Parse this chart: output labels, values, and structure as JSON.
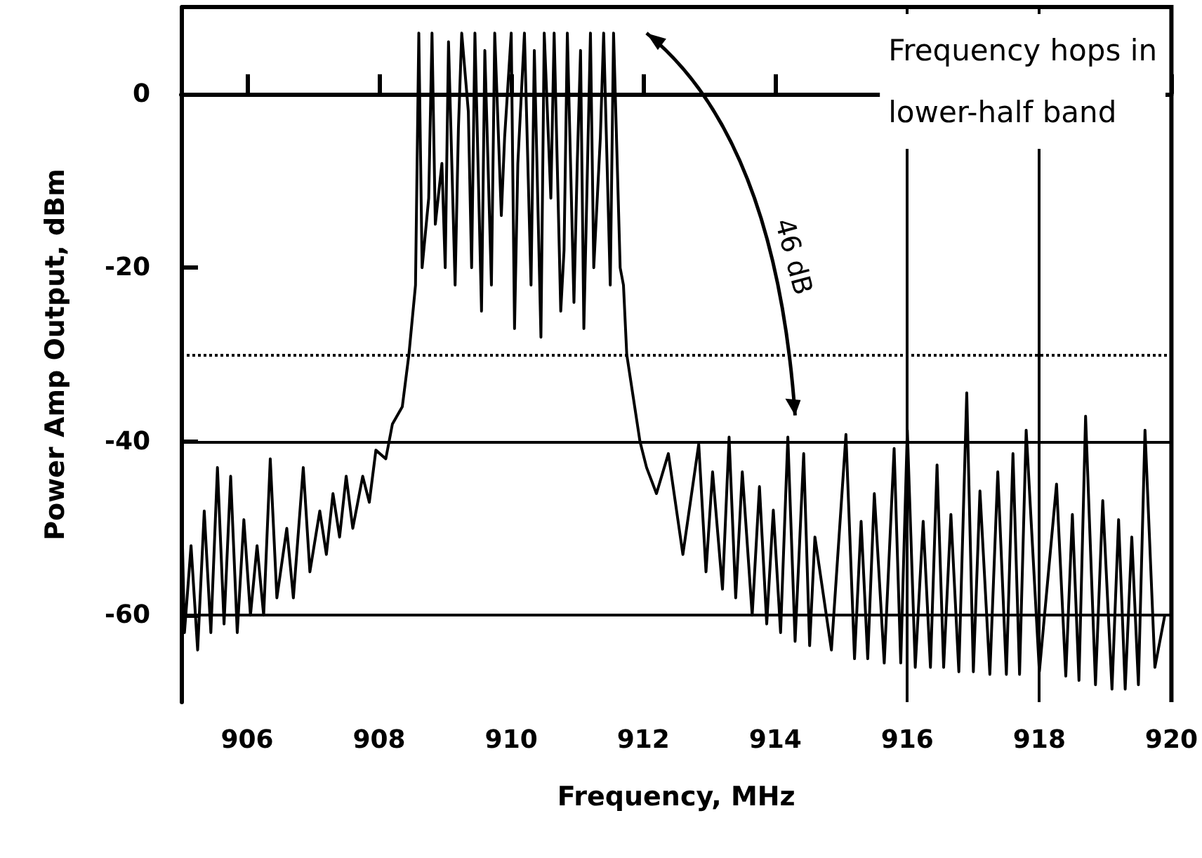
{
  "chart_data": {
    "type": "line",
    "xlabel": "Frequency, MHz",
    "ylabel": "Power Amp Output, dBm",
    "xlim": [
      905,
      920
    ],
    "xticks": [
      906,
      908,
      910,
      912,
      914,
      916,
      918,
      920
    ],
    "ylim": [
      -70,
      10
    ],
    "yticks": [
      0,
      -20,
      -40,
      -60
    ],
    "grid": false,
    "marker": "none",
    "line_style": "solid",
    "ref_lines": [
      {
        "axis": "y",
        "value": 0,
        "color": "#000000",
        "line_style": "solid"
      },
      {
        "axis": "y",
        "value": -40,
        "color": "#000000",
        "line_style": "solid"
      },
      {
        "axis": "y",
        "value": -60,
        "color": "#000000",
        "line_style": "solid"
      },
      {
        "axis": "y",
        "value": -30,
        "color": "#000000",
        "line_style": "dotted"
      },
      {
        "axis": "x",
        "value": 916,
        "color": "#000000",
        "line_style": "solid"
      },
      {
        "axis": "x",
        "value": 918,
        "color": "#000000",
        "line_style": "solid"
      }
    ],
    "annotations": [
      "Frequency hops in\nlower-half band",
      "46 dB"
    ],
    "series": [
      {
        "color": "#000000",
        "x": [
          905.0,
          905.05,
          905.15,
          905.25,
          905.35,
          905.45,
          905.55,
          905.65,
          905.75,
          905.85,
          905.95,
          906.05,
          906.15,
          906.25,
          906.35,
          906.45,
          906.6,
          906.7,
          906.85,
          906.95,
          907.1,
          907.2,
          907.3,
          907.4,
          907.5,
          907.6,
          907.75,
          907.85,
          907.95,
          908.1,
          908.2,
          908.35,
          908.45,
          908.55,
          908.6,
          908.65,
          908.75,
          908.8,
          908.85,
          908.95,
          909.0,
          909.05,
          909.15,
          909.2,
          909.25,
          909.35,
          909.4,
          909.45,
          909.55,
          909.6,
          909.7,
          909.75,
          909.85,
          909.9,
          910.0,
          910.05,
          910.1,
          910.2,
          910.3,
          910.35,
          910.45,
          910.5,
          910.6,
          910.65,
          910.75,
          910.8,
          910.85,
          910.95,
          911.0,
          911.05,
          911.1,
          911.2,
          911.25,
          911.35,
          911.4,
          911.5,
          911.55,
          911.65,
          911.7,
          911.75,
          911.85,
          911.95,
          912.05,
          912.2,
          912.38,
          912.6,
          912.84,
          912.95,
          913.05,
          913.2,
          913.3,
          913.4,
          913.5,
          913.65,
          913.76,
          913.87,
          913.97,
          914.08,
          914.19,
          914.3,
          914.43,
          914.52,
          914.6,
          914.85,
          915.07,
          915.2,
          915.3,
          915.4,
          915.5,
          915.65,
          915.8,
          915.9,
          916.0,
          916.12,
          916.24,
          916.35,
          916.45,
          916.55,
          916.66,
          916.78,
          916.9,
          917.0,
          917.1,
          917.25,
          917.37,
          917.5,
          917.6,
          917.7,
          917.8,
          918.0,
          918.26,
          918.4,
          918.5,
          918.6,
          918.7,
          918.85,
          918.96,
          919.1,
          919.2,
          919.3,
          919.4,
          919.5,
          919.6,
          919.75,
          919.9
        ],
        "values": [
          -45,
          -62,
          -52,
          -64,
          -48,
          -62,
          -43,
          -61,
          -44,
          -62,
          -49,
          -60,
          -52,
          -60,
          -42,
          -58,
          -50,
          -58,
          -43,
          -55,
          -48,
          -53,
          -46,
          -51,
          -44,
          -50,
          -44,
          -47,
          -41,
          -42,
          -38,
          -36,
          -30,
          -22,
          7,
          -20,
          -12,
          7,
          -15,
          -8,
          -20,
          6,
          -22,
          -4,
          7,
          -2,
          -20,
          7,
          -25,
          5,
          -22,
          7,
          -14,
          -5,
          7,
          -27,
          -8,
          7,
          -22,
          5,
          -28,
          7,
          -12,
          7,
          -25,
          -18,
          7,
          -24,
          -8,
          5,
          -27,
          7,
          -20,
          -5,
          7,
          -22,
          7,
          -20,
          -22,
          -30,
          -35,
          -40,
          -43,
          -46,
          -41.4,
          -53,
          -40.3,
          -55,
          -43.5,
          -57,
          -39.5,
          -58,
          -43.5,
          -60,
          -45.2,
          -61,
          -47.9,
          -62,
          -39.5,
          -63,
          -41.4,
          -63.5,
          -51,
          -64,
          -39.2,
          -65,
          -49.2,
          -65,
          -46,
          -65.5,
          -40.8,
          -65.5,
          -38.7,
          -66,
          -49.2,
          -66,
          -42.7,
          -66,
          -48.4,
          -66.5,
          -34.4,
          -66.5,
          -45.7,
          -66.8,
          -43.5,
          -66.8,
          -41.4,
          -66.8,
          -38.7,
          -66.5,
          -44.9,
          -67,
          -48.4,
          -67.5,
          -37.1,
          -68,
          -46.8,
          -68.5,
          -49,
          -68.5,
          -51,
          -68,
          -38.7,
          -66,
          -60
        ]
      }
    ]
  }
}
